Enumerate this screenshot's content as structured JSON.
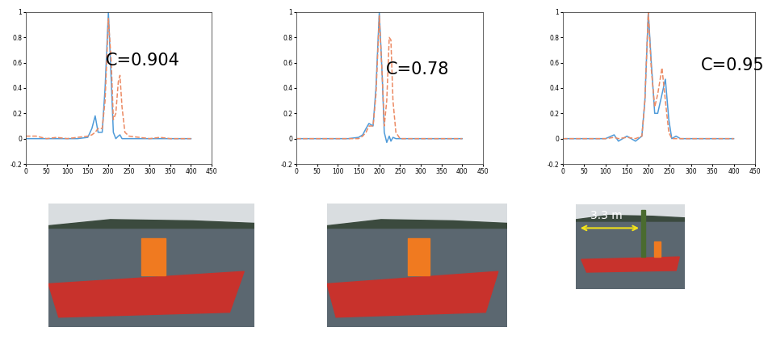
{
  "chart_data": [
    {
      "type": "line",
      "annotation": "C=0.904",
      "x": [
        0,
        25,
        50,
        75,
        100,
        125,
        150,
        160,
        168,
        175,
        185,
        192,
        200,
        207,
        212,
        218,
        224,
        228,
        233,
        240,
        250,
        275,
        300,
        325,
        350,
        375,
        400
      ],
      "series": [
        {
          "color": "#4f9bd9",
          "line_style": "solid",
          "values": [
            0,
            0,
            0,
            0,
            0,
            0,
            0.01,
            0.08,
            0.18,
            0.05,
            0.05,
            0.4,
            1.0,
            0.45,
            0.05,
            0.0,
            0.02,
            0.03,
            0.0,
            0.0,
            0,
            0,
            0,
            0,
            0,
            0,
            0
          ]
        },
        {
          "color": "#ec8a63",
          "line_style": "dashed",
          "values": [
            0.02,
            0.02,
            0.0,
            0.01,
            0.0,
            0.01,
            0.02,
            0.03,
            0.05,
            0.08,
            0.08,
            0.3,
            0.95,
            0.6,
            0.15,
            0.2,
            0.45,
            0.5,
            0.25,
            0.05,
            0.02,
            0.01,
            0,
            0.01,
            0,
            0,
            0
          ]
        }
      ],
      "xlim": [
        0,
        450
      ],
      "xticks": [
        0,
        50,
        100,
        150,
        200,
        250,
        300,
        350,
        400,
        450
      ],
      "ylim": [
        -0.2,
        1
      ],
      "yticks": [
        -0.2,
        0,
        0.2,
        0.4,
        0.6,
        0.8,
        1
      ]
    },
    {
      "type": "line",
      "annotation": "C=0.78",
      "x": [
        0,
        25,
        50,
        75,
        100,
        125,
        150,
        160,
        168,
        175,
        185,
        192,
        200,
        207,
        212,
        218,
        224,
        228,
        233,
        240,
        250,
        275,
        300,
        325,
        350,
        375,
        400
      ],
      "series": [
        {
          "color": "#4f9bd9",
          "line_style": "solid",
          "values": [
            0,
            0,
            0,
            0,
            0,
            0,
            0.01,
            0.03,
            0.08,
            0.12,
            0.1,
            0.4,
            1.0,
            0.5,
            0.05,
            -0.03,
            0.02,
            -0.02,
            0.01,
            0,
            0,
            0,
            0,
            0,
            0,
            0,
            0
          ]
        },
        {
          "color": "#ec8a63",
          "line_style": "dashed",
          "values": [
            0,
            0,
            0,
            0,
            0,
            0,
            0,
            0.02,
            0.05,
            0.1,
            0.1,
            0.35,
            0.97,
            0.5,
            0.1,
            0.3,
            0.8,
            0.78,
            0.3,
            0.05,
            0,
            0,
            0,
            0,
            0,
            0,
            0
          ]
        }
      ],
      "xlim": [
        0,
        450
      ],
      "xticks": [
        0,
        50,
        100,
        150,
        200,
        250,
        300,
        350,
        400,
        450
      ],
      "ylim": [
        -0.2,
        1
      ],
      "yticks": [
        -0.2,
        0,
        0.2,
        0.4,
        0.6,
        0.8,
        1
      ]
    },
    {
      "type": "line",
      "annotation": "C=0.95",
      "photo_text": "3.3 m",
      "x": [
        0,
        25,
        50,
        75,
        100,
        120,
        130,
        150,
        170,
        185,
        192,
        200,
        207,
        215,
        222,
        232,
        240,
        248,
        255,
        265,
        275,
        300,
        325,
        350,
        375,
        400
      ],
      "series": [
        {
          "color": "#4f9bd9",
          "line_style": "solid",
          "values": [
            0,
            0,
            0,
            0,
            0,
            0.03,
            -0.02,
            0.02,
            -0.02,
            0.02,
            0.3,
            1.0,
            0.6,
            0.2,
            0.2,
            0.35,
            0.47,
            0.15,
            0,
            0.02,
            0,
            0,
            0,
            0,
            0,
            0
          ]
        },
        {
          "color": "#ec8a63",
          "line_style": "dashed",
          "values": [
            0,
            0,
            0,
            0,
            0,
            0.01,
            0,
            0.01,
            0,
            0.02,
            0.3,
            1.0,
            0.55,
            0.25,
            0.35,
            0.56,
            0.3,
            0.05,
            0,
            0,
            0,
            0,
            0,
            0,
            0,
            0
          ]
        }
      ],
      "xlim": [
        0,
        450
      ],
      "xticks": [
        0,
        50,
        100,
        150,
        200,
        250,
        300,
        350,
        400,
        450
      ],
      "ylim": [
        -0.2,
        1
      ],
      "yticks": [
        -0.2,
        0,
        0.2,
        0.4,
        0.6,
        0.8,
        1
      ]
    }
  ]
}
